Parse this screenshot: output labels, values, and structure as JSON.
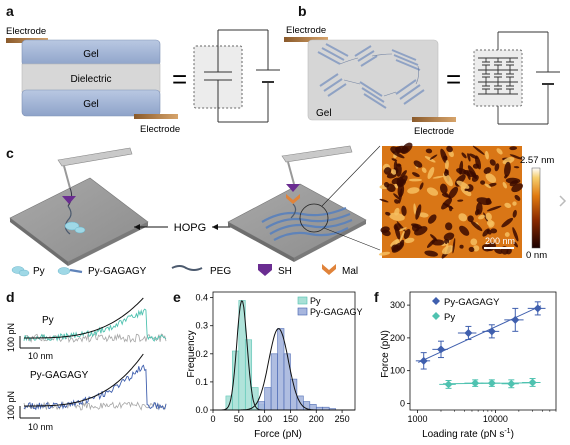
{
  "figure": {
    "panel_letters": [
      "a",
      "b",
      "c",
      "d",
      "e",
      "f"
    ],
    "a": {
      "electrode_top": "Electrode",
      "gel_top": "Gel",
      "dielectric": "Dielectric",
      "gel_bottom": "Gel",
      "electrode_bottom": "Electrode",
      "equals": "="
    },
    "b": {
      "electrode_top": "Electrode",
      "gel": "Gel",
      "electrode_bottom": "Electrode",
      "equals": "="
    },
    "c": {
      "hopg": "HOPG",
      "colorbar_max": "2.57 nm",
      "colorbar_min": "0 nm",
      "scale_bar": "200 nm",
      "legend": [
        "Py",
        "Py-GAGAGY",
        "PEG",
        "SH",
        "Mal"
      ]
    },
    "d": {
      "traces": [
        {
          "name": "Py",
          "y_scale": "100 pN",
          "x_scale": "10 nm"
        },
        {
          "name": "Py-GAGAGY",
          "y_scale": "100 pN",
          "x_scale": "10 nm"
        }
      ]
    },
    "colors": {
      "gel": "#9aaed0",
      "dielectric": "#d7d7d7",
      "electrode": "#b07a42",
      "py": "#4fc2b0",
      "py_gagagy": "#3f5fae",
      "thiol": "#6a2c91",
      "maleimide": "#e0833a"
    }
  },
  "chart_data": [
    {
      "panel": "e",
      "type": "bar",
      "xlabel": "Force (pN)",
      "ylabel": "Frequency",
      "xlim": [
        0,
        275
      ],
      "ylim": [
        0,
        0.42
      ],
      "xticks": [
        0,
        50,
        100,
        150,
        200,
        250
      ],
      "yticks": [
        0.0,
        0.1,
        0.2,
        0.3,
        0.4
      ],
      "ytick_labels": [
        "0.0",
        "0.1",
        "0.2",
        "0.3",
        "0.4"
      ],
      "bin_width": 12.5,
      "legend": "top-right",
      "series": [
        {
          "name": "Py",
          "color": "#4fc2b0",
          "bin_starts": [
            25,
            37.5,
            50,
            62.5,
            75,
            87.5
          ],
          "values": [
            0.05,
            0.21,
            0.39,
            0.25,
            0.08,
            0.02
          ],
          "fit_mean": 56,
          "fit_sd": 10,
          "fit_peak": 0.39
        },
        {
          "name": "Py-GAGAGY",
          "color": "#3f5fae",
          "bin_starts": [
            87.5,
            100,
            112.5,
            125,
            137.5,
            150,
            162.5,
            175,
            187.5,
            200,
            212.5,
            225
          ],
          "values": [
            0.03,
            0.08,
            0.2,
            0.29,
            0.2,
            0.11,
            0.05,
            0.03,
            0.02,
            0.01,
            0.01,
            0.005
          ],
          "fit_mean": 127,
          "fit_sd": 19,
          "fit_peak": 0.29
        }
      ]
    },
    {
      "panel": "f",
      "type": "scatter",
      "xlabel": "Loading rate (pN s",
      "xlabel_sup": "-1",
      "xlabel_close": ")",
      "ylabel": "Force (pN)",
      "xscale": "log",
      "xlim": [
        800,
        60000
      ],
      "ylim": [
        -20,
        340
      ],
      "xticks": [
        1000,
        10000
      ],
      "xtick_labels": [
        "1000",
        "10000"
      ],
      "yticks": [
        0,
        100,
        200,
        300
      ],
      "legend": "top-left",
      "series": [
        {
          "name": "Py-GAGAGY",
          "marker": "diamond",
          "color": "#3f5fae",
          "x": [
            1200,
            2000,
            4500,
            9000,
            18000,
            35000
          ],
          "y": [
            130,
            165,
            215,
            220,
            255,
            290
          ],
          "xerr": [
            250,
            450,
            1200,
            2200,
            5000,
            9000
          ],
          "yerr": [
            25,
            25,
            20,
            20,
            35,
            20
          ],
          "fit_y": [
            125,
            298
          ]
        },
        {
          "name": "Py",
          "marker": "diamond",
          "color": "#4fc2b0",
          "x": [
            2500,
            5500,
            9000,
            16000,
            30000
          ],
          "y": [
            58,
            62,
            62,
            60,
            64
          ],
          "xerr": [
            600,
            1500,
            2500,
            4000,
            8000
          ],
          "yerr": [
            12,
            10,
            10,
            12,
            12
          ],
          "fit_y": [
            60,
            63
          ]
        }
      ]
    }
  ]
}
